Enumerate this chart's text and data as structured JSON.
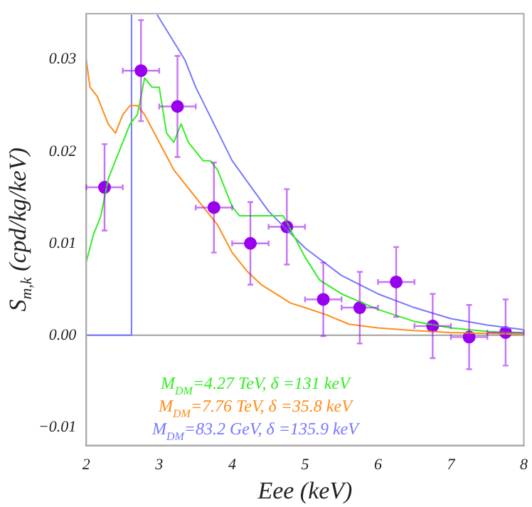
{
  "chart_data": {
    "type": "line",
    "xlabel": "Eee (keV)",
    "ylabel": "S$_{m,k}$ (cpd/kg/keV)",
    "xlim": [
      2,
      8
    ],
    "ylim": [
      -0.012,
      0.035
    ],
    "xticks": [
      2,
      3,
      4,
      5,
      6,
      7,
      8
    ],
    "yticks": [
      {
        "value": -0.01,
        "label": "−0.01"
      },
      {
        "value": 0,
        "label": "0.00"
      },
      0.01,
      0.02,
      0.03
    ],
    "grid": false,
    "legend": "bottom",
    "line_style": "solid",
    "marker": "none",
    "ref_lines": [
      {
        "axis": "y",
        "value": 0,
        "color": "#a0a0a0"
      }
    ],
    "series": [
      {
        "name": "M$_{DM}$=4.27 TeV, δ =131 keV",
        "color": "#33ee22",
        "x": [
          2,
          2.1,
          2.2,
          2.3,
          2.4,
          2.5,
          2.6,
          2.7,
          2.8,
          2.9,
          3.0,
          3.1,
          3.2,
          3.3,
          3.4,
          3.5,
          3.6,
          3.7,
          3.8,
          3.9,
          4.0,
          4.1,
          4.3,
          4.5,
          4.7,
          4.9,
          5.0,
          5.2,
          5.5,
          6.0,
          6.5,
          7.0,
          7.5,
          8.0
        ],
        "values": [
          0.008,
          0.011,
          0.013,
          0.017,
          0.019,
          0.021,
          0.023,
          0.024,
          0.028,
          0.027,
          0.027,
          0.022,
          0.021,
          0.023,
          0.021,
          0.02,
          0.019,
          0.019,
          0.018,
          0.016,
          0.014,
          0.013,
          0.013,
          0.013,
          0.013,
          0.01,
          0.0085,
          0.006,
          0.0045,
          0.0028,
          0.0015,
          0.0008,
          0.0004,
          0.0002
        ]
      },
      {
        "name": "M$_{DM}$=7.76 TeV, δ =35.8 keV",
        "color": "#ff8c1a",
        "x": [
          2,
          2.05,
          2.15,
          2.3,
          2.4,
          2.5,
          2.6,
          2.7,
          2.8,
          3.0,
          3.2,
          3.4,
          3.6,
          3.8,
          4.0,
          4.2,
          4.4,
          4.6,
          4.8,
          5.0,
          5.3,
          5.6,
          6.0,
          6.5,
          7.0,
          8.0
        ],
        "values": [
          0.03,
          0.027,
          0.026,
          0.023,
          0.022,
          0.024,
          0.025,
          0.025,
          0.024,
          0.021,
          0.018,
          0.016,
          0.014,
          0.012,
          0.009,
          0.007,
          0.0055,
          0.0045,
          0.0035,
          0.003,
          0.0022,
          0.0012,
          0.0008,
          0.0005,
          0.0003,
          0.0001
        ]
      },
      {
        "name": "M$_{DM}$=83.2 GeV, δ =135.9 keV",
        "color": "#7777ff",
        "x": [
          2,
          2.62,
          2.62,
          2.8,
          2.97,
          3.35,
          3.5,
          4.0,
          4.5,
          5.0,
          5.5,
          6.0,
          6.5,
          7.0,
          7.5,
          8.0
        ],
        "values": [
          0,
          0,
          0.0349,
          null,
          0.0349,
          0.03,
          0.027,
          0.019,
          0.0135,
          0.0095,
          0.0065,
          0.0045,
          0.003,
          0.0018,
          0.0011,
          0.0006
        ]
      },
      {
        "type": "scatter",
        "marker": "circle",
        "color": "#9900ee",
        "x": [
          2.25,
          2.75,
          3.25,
          3.75,
          4.25,
          4.75,
          5.25,
          5.75,
          6.25,
          6.75,
          7.25,
          7.75
        ],
        "values": [
          0.0161,
          0.0288,
          0.0249,
          0.0139,
          0.01,
          0.0118,
          0.0039,
          0.003,
          0.0058,
          0.001,
          -0.0002,
          0.0003
        ],
        "errors": [
          0.0047,
          0.0055,
          0.0055,
          0.0049,
          0.0045,
          0.0041,
          0.004,
          0.0039,
          0.0038,
          0.0035,
          0.0035,
          0.0036
        ],
        "xerrors": [
          0.25,
          0.25,
          0.25,
          0.25,
          0.25,
          0.25,
          0.25,
          0.25,
          0.25,
          0.25,
          0.25,
          0.25
        ]
      }
    ]
  }
}
